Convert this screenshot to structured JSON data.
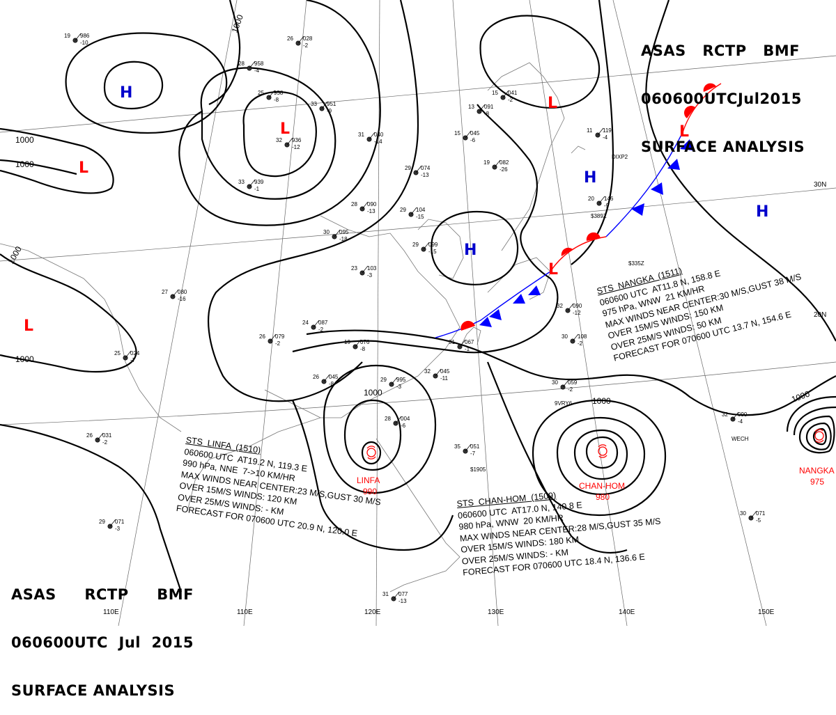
{
  "header": {
    "line1": [
      "ASAS",
      "RCTP",
      "BMF"
    ],
    "line2": [
      "060600UTC",
      "Jul",
      "2015"
    ],
    "line3": "SURFACE ANALYSIS"
  },
  "colors": {
    "high": "#0000cc",
    "low": "#ff0000",
    "cold_front": "#0000ff",
    "warm_front": "#ff0000",
    "isobar": "#000000",
    "graticule": "#666666"
  },
  "grid_labels": {
    "longitudes": [
      "110E",
      "120E",
      "130E",
      "140E",
      "150E"
    ],
    "latitudes": [
      "30N",
      "20N"
    ]
  },
  "isobar_labels": [
    {
      "text": "1000",
      "id": "top-left"
    },
    {
      "text": "1000",
      "id": "left-1"
    },
    {
      "text": "1000",
      "id": "left-2"
    },
    {
      "text": "1000",
      "id": "left-3"
    },
    {
      "text": "1000",
      "id": "left-4"
    },
    {
      "text": "1000",
      "id": "linfa"
    },
    {
      "text": "1000",
      "id": "chanhom"
    },
    {
      "text": "1000",
      "id": "nangka"
    }
  ],
  "pressure_systems": [
    {
      "type": "H",
      "id": "mongolia"
    },
    {
      "type": "L",
      "id": "central-asia"
    },
    {
      "type": "L",
      "id": "west-china"
    },
    {
      "type": "L",
      "id": "india"
    },
    {
      "type": "H",
      "id": "korea"
    },
    {
      "type": "L",
      "id": "kuril"
    },
    {
      "type": "H",
      "id": "japan-sea"
    },
    {
      "type": "H",
      "id": "pacific"
    },
    {
      "type": "L",
      "id": "wave-east"
    },
    {
      "type": "L",
      "id": "wave-ryukyu"
    }
  ],
  "tropical_cyclones": {
    "linfa": {
      "map_label": "LINFA",
      "map_pressure": "990",
      "lines": [
        "STS  LINFA  (1510)",
        "060600 UTC  AT19.2 N, 119.3 E",
        "990 hPa, NNE  7->10 KM/HR",
        "MAX WINDS NEAR CENTER:23 M/S,GUST 30 M/S",
        "OVER 15M/S WINDS: 120 KM",
        "OVER 25M/S WINDS: - KM",
        "FORECAST FOR 070600 UTC 20.9 N, 120.0 E"
      ]
    },
    "chanhom": {
      "map_label": "CHAN-HOM",
      "map_pressure": "980",
      "lines": [
        "STS  CHAN-HOM  (1509)",
        "060600 UTC  AT17.0 N, 140.8 E",
        "980 hPa, WNW  20 KM/HR",
        "MAX WINDS NEAR CENTER:28 M/S,GUST 35 M/S",
        "OVER 15M/S WINDS: 180 KM",
        "OVER 25M/S WINDS: - KM",
        "FORECAST FOR 070600 UTC 18.4 N, 136.6 E"
      ]
    },
    "nangka": {
      "map_label": "NANGKA",
      "map_pressure": "975",
      "lines": [
        "STS  NANGKA  (1511)",
        "060600 UTC  AT11.8 N, 158.8 E",
        "975 hPa, WNW  21 KM/HR",
        "MAX WINDS NEAR CENTER:30 M/S,GUST 38 M/S",
        "OVER 15M/S WINDS: 150 KM",
        "OVER 25M/S WINDS: 50 KM",
        "FORECAST FOR 070600 UTC 13.7 N, 154.6 E"
      ]
    }
  },
  "stations": [
    {
      "id": "s01",
      "t": "19",
      "p": "986",
      "d": "-10"
    },
    {
      "id": "s02",
      "t": "26",
      "p": "028",
      "d": "-2"
    },
    {
      "id": "s03",
      "t": "28",
      "p": "958",
      "d": "-4"
    },
    {
      "id": "s04",
      "t": "25",
      "p": "958",
      "d": "-8"
    },
    {
      "id": "s05",
      "t": "33",
      "p": "951",
      "d": "-9"
    },
    {
      "id": "s06",
      "t": "32",
      "p": "936",
      "d": "-12"
    },
    {
      "id": "s07",
      "t": "33",
      "p": "939",
      "d": "-1"
    },
    {
      "id": "s08",
      "t": "31",
      "p": "040",
      "d": "-14"
    },
    {
      "id": "s09",
      "t": "29",
      "p": "074",
      "d": "-13"
    },
    {
      "id": "s10",
      "t": "28",
      "p": "090",
      "d": "-13"
    },
    {
      "id": "s11",
      "t": "29",
      "p": "104",
      "d": "-15"
    },
    {
      "id": "s12",
      "t": "30",
      "p": "095",
      "d": "-18"
    },
    {
      "id": "s13",
      "t": "29",
      "p": "099",
      "d": "-15"
    },
    {
      "id": "s14",
      "t": "23",
      "p": "103",
      "d": "-3"
    },
    {
      "id": "s15",
      "t": "27",
      "p": "080",
      "d": "-16"
    },
    {
      "id": "s16",
      "t": "24",
      "p": "087",
      "d": "-2"
    },
    {
      "id": "s17",
      "t": "26",
      "p": "079",
      "d": "-2"
    },
    {
      "id": "s18",
      "t": "19",
      "p": "076",
      "d": "-8"
    },
    {
      "id": "s19",
      "t": "31",
      "p": "067",
      "d": "-1"
    },
    {
      "id": "s20",
      "t": "32",
      "p": "045",
      "d": "-11"
    },
    {
      "id": "s21",
      "t": "26",
      "p": "045",
      "d": "-8"
    },
    {
      "id": "s22",
      "t": "29",
      "p": "995",
      "d": "-3"
    },
    {
      "id": "s23",
      "t": "28",
      "p": "004",
      "d": "-6"
    },
    {
      "id": "s24",
      "t": "35",
      "p": "051",
      "d": "-7"
    },
    {
      "id": "s25",
      "t": "30",
      "p": "059",
      "d": "-2"
    },
    {
      "id": "s26",
      "t": "32",
      "p": "090",
      "d": "-12"
    },
    {
      "id": "s27",
      "t": "30",
      "p": "108",
      "d": "-2"
    },
    {
      "id": "s28",
      "t": "20",
      "p": "146",
      "d": "-9"
    },
    {
      "id": "s29",
      "t": "11",
      "p": "119",
      "d": "-4"
    },
    {
      "id": "s30",
      "t": "13",
      "p": "091",
      "d": "-8"
    },
    {
      "id": "s31",
      "t": "15",
      "p": "045",
      "d": "-6"
    },
    {
      "id": "s32",
      "t": "19",
      "p": "082",
      "d": "-26"
    },
    {
      "id": "s33",
      "t": "15",
      "p": "041",
      "d": "-2"
    },
    {
      "id": "s34",
      "t": "29",
      "p": "071",
      "d": "-3"
    },
    {
      "id": "s35",
      "t": "25",
      "p": "024",
      "d": "-7"
    },
    {
      "id": "s36",
      "t": "26",
      "p": "031",
      "d": "-2"
    },
    {
      "id": "s37",
      "t": "30",
      "p": "071",
      "d": "-5"
    },
    {
      "id": "s38",
      "t": "32",
      "p": "090",
      "d": "-4"
    },
    {
      "id": "s39",
      "t": "31",
      "p": "077",
      "d": "-13"
    }
  ],
  "station_ids": [
    "DIXP2",
    "WECH",
    "9VRY6",
    "$389Z",
    "$335Z",
    "$1905"
  ]
}
